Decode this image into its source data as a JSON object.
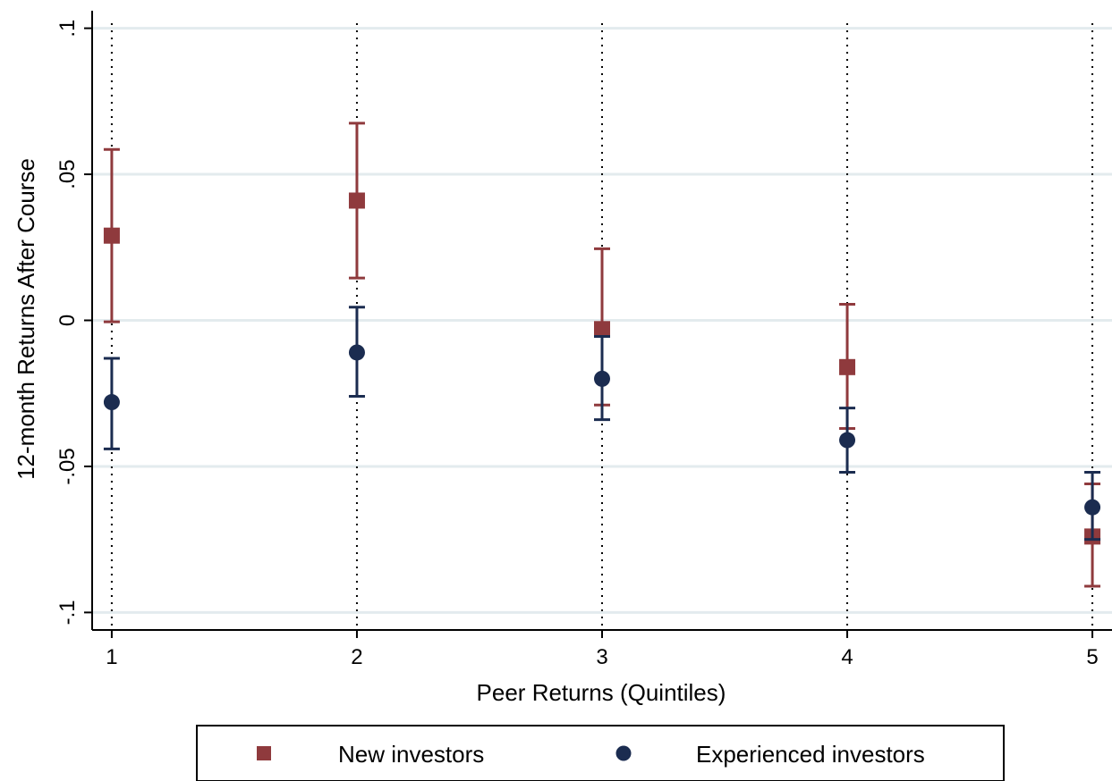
{
  "chart_data": {
    "type": "scatter",
    "title": "",
    "xlabel": "Peer Returns (Quintiles)",
    "ylabel": "12-month Returns After Course",
    "x": [
      1,
      2,
      3,
      4,
      5
    ],
    "x_ticks": [
      "1",
      "2",
      "3",
      "4",
      "5"
    ],
    "xlim": [
      0.92,
      5.08
    ],
    "ylim": [
      -0.106,
      0.106
    ],
    "y_ticks": [
      {
        "value": 0.1,
        "label": ".1"
      },
      {
        "value": 0.05,
        "label": ".05"
      },
      {
        "value": 0,
        "label": "0"
      },
      {
        "value": -0.05,
        "label": "-.05"
      },
      {
        "value": -0.1,
        "label": "-.1"
      }
    ],
    "grid": true,
    "legend_position": "bottom",
    "series": [
      {
        "name": "New investors",
        "marker": "square",
        "color": "#8f3a3d",
        "values": [
          0.029,
          0.041,
          -0.003,
          -0.016,
          -0.074
        ],
        "ci_low": [
          -0.0005,
          0.0145,
          -0.029,
          -0.037,
          -0.091
        ],
        "ci_high": [
          0.0585,
          0.0675,
          0.0245,
          0.0055,
          -0.056
        ]
      },
      {
        "name": "Experienced investors",
        "marker": "circle",
        "color": "#1b2c50",
        "values": [
          -0.028,
          -0.011,
          -0.02,
          -0.041,
          -0.064
        ],
        "ci_low": [
          -0.044,
          -0.026,
          -0.034,
          -0.052,
          -0.075
        ],
        "ci_high": [
          -0.013,
          0.0045,
          -0.0055,
          -0.03,
          -0.052
        ]
      }
    ]
  }
}
